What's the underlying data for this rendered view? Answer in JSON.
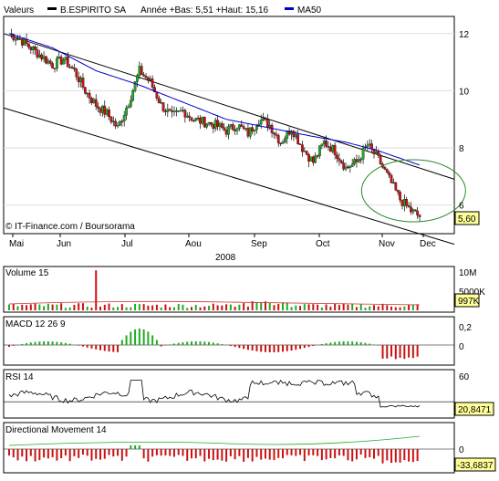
{
  "chart_data": [
    {
      "type": "candlestick",
      "header": {
        "valeurs_label": "Valeurs",
        "security_name": "B.ESPIRITO SA",
        "year_range_text": "Année +Bas: 5,51 +Haut: 15,16",
        "ma_label": "MA50"
      },
      "credit": "© IT-Finance.com / Boursorama",
      "last_price_label": "5,60",
      "ylim": [
        5.0,
        12.6
      ],
      "yticks": [
        {
          "value": 12,
          "label": "12"
        },
        {
          "value": 10,
          "label": "10"
        },
        {
          "value": 8,
          "label": "8"
        },
        {
          "value": 6,
          "label": "6"
        }
      ],
      "x_months": [
        "Mai",
        "Jun",
        "Jul",
        "Aou",
        "Sep",
        "Oct",
        "Nov",
        "Dec"
      ],
      "year_label": "2008",
      "price_path": [
        [
          0,
          12.0
        ],
        [
          5,
          11.8
        ],
        [
          10,
          11.5
        ],
        [
          15,
          11.2
        ],
        [
          20,
          10.9
        ],
        [
          25,
          11.1
        ],
        [
          30,
          10.7
        ],
        [
          35,
          10.0
        ],
        [
          40,
          9.5
        ],
        [
          45,
          9.2
        ],
        [
          50,
          8.7
        ],
        [
          55,
          9.6
        ],
        [
          60,
          10.7
        ],
        [
          65,
          10.3
        ],
        [
          70,
          9.5
        ],
        [
          75,
          9.1
        ],
        [
          80,
          9.3
        ],
        [
          85,
          9.0
        ],
        [
          90,
          8.9
        ],
        [
          95,
          8.8
        ],
        [
          100,
          8.6
        ],
        [
          105,
          8.8
        ],
        [
          110,
          8.5
        ],
        [
          115,
          9.0
        ],
        [
          120,
          8.8
        ],
        [
          125,
          8.2
        ],
        [
          130,
          8.7
        ],
        [
          135,
          8.0
        ],
        [
          140,
          7.5
        ],
        [
          145,
          8.2
        ],
        [
          150,
          7.9
        ],
        [
          155,
          7.3
        ],
        [
          160,
          7.5
        ],
        [
          165,
          8.1
        ],
        [
          170,
          7.6
        ],
        [
          175,
          6.9
        ],
        [
          180,
          6.2
        ],
        [
          185,
          5.8
        ],
        [
          189,
          5.6
        ]
      ],
      "ma50_path": [
        [
          0,
          12.0
        ],
        [
          20,
          11.5
        ],
        [
          40,
          10.7
        ],
        [
          60,
          10.2
        ],
        [
          80,
          9.6
        ],
        [
          100,
          9.0
        ],
        [
          120,
          8.7
        ],
        [
          140,
          8.4
        ],
        [
          155,
          8.2
        ],
        [
          170,
          7.9
        ],
        [
          189,
          7.4
        ]
      ],
      "upper_channel": [
        [
          0,
          12.0
        ],
        [
          189,
          7.3
        ]
      ],
      "lower_channel": [
        [
          0,
          9.4
        ],
        [
          189,
          5.0
        ]
      ],
      "highlight_circle": {
        "x": 182,
        "y": 6.5
      }
    },
    {
      "type": "bar",
      "panel": "volume",
      "title": "Volume 15",
      "ytick_labels": [
        "10M",
        "5000K"
      ],
      "last_value_label": "997K",
      "ylim": [
        0,
        10.5
      ],
      "values_note": "volumes in millions, mostly around 1M with a spike near 10M in late May"
    },
    {
      "type": "bar",
      "panel": "macd",
      "title": "MACD 12 26 9",
      "ytick_labels": [
        "0,2",
        "0"
      ],
      "ylim": [
        -0.35,
        0.3
      ]
    },
    {
      "type": "line",
      "panel": "rsi",
      "title": "RSI 14",
      "ytick_labels": [
        "60"
      ],
      "last_value_label": "20,8471",
      "ylim": [
        10,
        75
      ]
    },
    {
      "type": "bar",
      "panel": "dm",
      "title": "Directional Movement 14",
      "ytick_labels": [
        "0"
      ],
      "last_value_label": "-33,6837",
      "ylim": [
        -45,
        25
      ]
    }
  ]
}
